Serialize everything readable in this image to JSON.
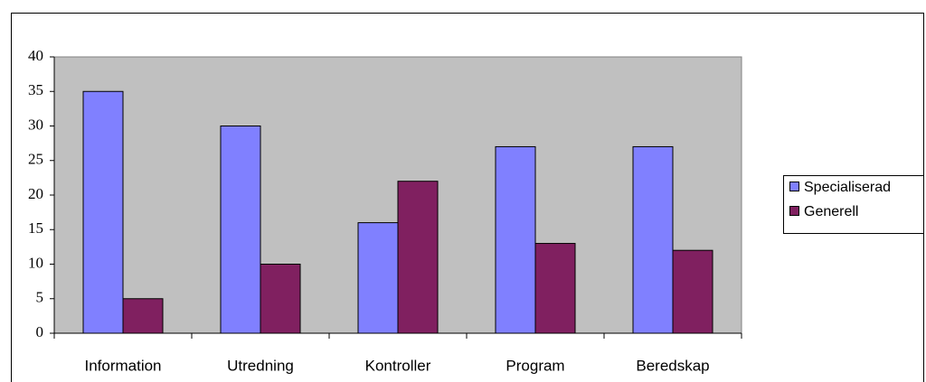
{
  "chart_data": {
    "type": "bar",
    "categories": [
      "Information",
      "Utredning",
      "Kontroller",
      "Program",
      "Beredskap"
    ],
    "series": [
      {
        "name": "Specialiserad",
        "color": "#8080ff",
        "values": [
          35,
          30,
          16,
          27,
          27
        ]
      },
      {
        "name": "Generell",
        "color": "#802060",
        "values": [
          5,
          10,
          22,
          13,
          12
        ]
      }
    ],
    "ylim": [
      0,
      40
    ],
    "yticks": [
      0,
      5,
      10,
      15,
      20,
      25,
      30,
      35,
      40
    ],
    "legend": "right",
    "plot_background": "#c0c0c0"
  }
}
